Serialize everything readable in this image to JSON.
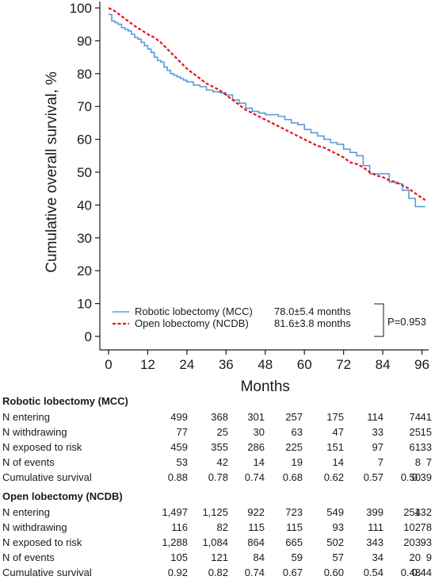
{
  "chart_data": {
    "type": "line",
    "xlabel": "Months",
    "ylabel": "Cumulative overall survival, %",
    "xlim": [
      0,
      97
    ],
    "ylim": [
      0,
      100
    ],
    "x_ticks": [
      0,
      12,
      24,
      36,
      48,
      60,
      72,
      84,
      96
    ],
    "y_ticks": [
      0,
      10,
      20,
      30,
      40,
      50,
      60,
      70,
      80,
      90,
      100
    ],
    "grid": false,
    "legend_position": "bottom-left",
    "series": [
      {
        "name": "Robotic lobectomy (MCC)",
        "median": "78.0±5.4 months",
        "color": "#5b9bd5",
        "style": "solid-step",
        "x": [
          0,
          1,
          2,
          3,
          4,
          5,
          6,
          7,
          8,
          9,
          10,
          11,
          12,
          13,
          14,
          15,
          16,
          17,
          18,
          19,
          20,
          21,
          22,
          23,
          24,
          26,
          28,
          30,
          32,
          34,
          36,
          38,
          40,
          42,
          44,
          46,
          48,
          50,
          52,
          54,
          56,
          58,
          60,
          62,
          64,
          66,
          68,
          70,
          72,
          74,
          76,
          78,
          80,
          82,
          84,
          86,
          88,
          90,
          92,
          94,
          97
        ],
        "y": [
          98,
          96,
          95.5,
          95,
          94,
          93.5,
          93,
          92,
          91,
          90.5,
          89.5,
          88.5,
          87.5,
          86.5,
          85,
          84,
          83.5,
          82,
          81,
          80,
          79.5,
          79,
          78.5,
          78,
          77.5,
          76.5,
          76,
          75,
          74.5,
          74.2,
          73.5,
          72,
          71,
          69.5,
          68.5,
          68,
          67.5,
          67.5,
          67,
          66,
          65,
          64.5,
          63,
          62,
          61,
          60,
          59,
          58.5,
          57,
          56,
          55,
          52,
          49.5,
          49.5,
          49.5,
          47,
          46.5,
          44.5,
          42,
          39.5,
          39.5
        ]
      },
      {
        "name": "Open lobectomy (NCDB)",
        "median": "81.6±3.8 months",
        "color": "#e8141c",
        "style": "dashed",
        "x": [
          0,
          2,
          4,
          6,
          8,
          10,
          12,
          14,
          16,
          18,
          20,
          22,
          24,
          26,
          28,
          30,
          32,
          34,
          36,
          38,
          40,
          42,
          44,
          46,
          48,
          50,
          52,
          54,
          56,
          58,
          60,
          62,
          64,
          66,
          68,
          70,
          72,
          74,
          76,
          78,
          80,
          82,
          84,
          86,
          88,
          90,
          92,
          94,
          97
        ],
        "y": [
          100,
          99,
          97.5,
          96,
          94.5,
          93.3,
          92,
          91,
          89.5,
          87.5,
          85.5,
          83.5,
          81.5,
          80,
          78.5,
          77,
          76,
          75,
          73.5,
          72,
          70.5,
          69,
          68,
          67,
          66,
          65,
          64,
          63,
          62,
          61,
          60,
          59,
          58,
          57.5,
          56.5,
          55.5,
          54.5,
          53,
          52.5,
          51.5,
          50,
          49,
          48.5,
          47.5,
          47,
          46,
          45,
          43.5,
          41.5
        ]
      }
    ],
    "annotation": "P=0.953"
  },
  "risk_table": {
    "columns": [
      0,
      12,
      24,
      36,
      48,
      60,
      72,
      84
    ],
    "groups": [
      {
        "title": "Robotic lobectomy (MCC)",
        "rows": [
          {
            "label": "N entering",
            "values": [
              "499",
              "368",
              "301",
              "257",
              "175",
              "114",
              "74",
              "41"
            ]
          },
          {
            "label": "N withdrawing",
            "values": [
              "77",
              "25",
              "30",
              "63",
              "47",
              "33",
              "25",
              "15"
            ]
          },
          {
            "label": "N exposed to risk",
            "values": [
              "459",
              "355",
              "286",
              "225",
              "151",
              "97",
              "61",
              "33"
            ]
          },
          {
            "label": "N of events",
            "values": [
              "53",
              "42",
              "14",
              "19",
              "14",
              "7",
              "8",
              "7"
            ]
          },
          {
            "label": "Cumulative survival",
            "values": [
              "0.88",
              "0.78",
              "0.74",
              "0.68",
              "0.62",
              "0.57",
              "0.50",
              "0.39"
            ]
          }
        ]
      },
      {
        "title": "Open lobectomy (NCDB)",
        "rows": [
          {
            "label": "N entering",
            "values": [
              "1,497",
              "1,125",
              "922",
              "723",
              "549",
              "399",
              "254",
              "132"
            ]
          },
          {
            "label": "N withdrawing",
            "values": [
              "116",
              "82",
              "115",
              "115",
              "93",
              "111",
              "102",
              "78"
            ]
          },
          {
            "label": "N exposed to risk",
            "values": [
              "1,288",
              "1,084",
              "864",
              "665",
              "502",
              "343",
              "203",
              "93"
            ]
          },
          {
            "label": "N of events",
            "values": [
              "105",
              "121",
              "84",
              "59",
              "57",
              "34",
              "20",
              "9"
            ]
          },
          {
            "label": "Cumulative survival",
            "values": [
              "0.92",
              "0.82",
              "0.74",
              "0.67",
              "0.60",
              "0.54",
              "0.48",
              "0.44"
            ]
          }
        ]
      }
    ]
  }
}
